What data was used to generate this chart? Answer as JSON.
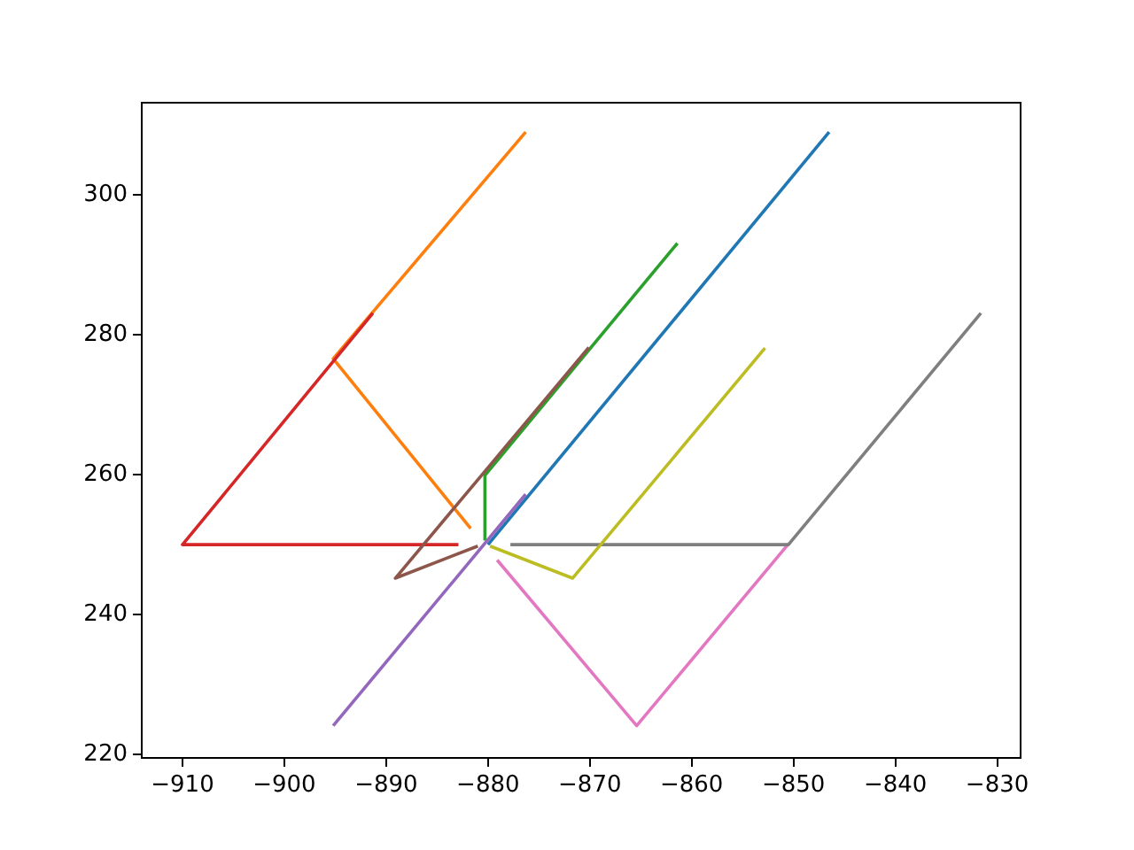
{
  "chart_data": {
    "type": "line",
    "xlim": [
      -914,
      -827.7
    ],
    "ylim": [
      219.5,
      313.2
    ],
    "xticks": [
      -910,
      -900,
      -890,
      -880,
      -870,
      -860,
      -850,
      -840,
      -830
    ],
    "yticks": [
      220,
      240,
      260,
      280,
      300
    ],
    "grid": false,
    "legend": false,
    "marker": "none",
    "line_style": "solid",
    "series": [
      {
        "color": "#1f77b4",
        "x": [
          -880,
          -846.5
        ],
        "values": [
          250,
          309
        ]
      },
      {
        "color": "#ff7f0e",
        "x": [
          -881.7,
          -895.2,
          -876.3
        ],
        "values": [
          252.3,
          276.6,
          309
        ]
      },
      {
        "color": "#2ca02c",
        "x": [
          -880.3,
          -880.3,
          -861.4
        ],
        "values": [
          250.6,
          259.9,
          293.1
        ]
      },
      {
        "color": "#d62728",
        "x": [
          -891.3,
          -910,
          -882.9
        ],
        "values": [
          283.1,
          250,
          250
        ]
      },
      {
        "color": "#9467bd",
        "x": [
          -895.2,
          -876.3
        ],
        "values": [
          224.1,
          257.2
        ]
      },
      {
        "color": "#8c564b",
        "x": [
          -870.1,
          -889.1,
          -881
        ],
        "values": [
          278.2,
          245.2,
          249.8
        ]
      },
      {
        "color": "#e377c2",
        "x": [
          -879.1,
          -865.4,
          -850.5
        ],
        "values": [
          247.8,
          224.1,
          250.1
        ]
      },
      {
        "color": "#7f7f7f",
        "x": [
          -877.8,
          -850.5,
          -831.6
        ],
        "values": [
          250,
          250,
          283.1
        ]
      },
      {
        "color": "#bcbd22",
        "x": [
          -879.8,
          -871.7,
          -852.8
        ],
        "values": [
          249.8,
          245.2,
          278.1
        ]
      }
    ]
  }
}
